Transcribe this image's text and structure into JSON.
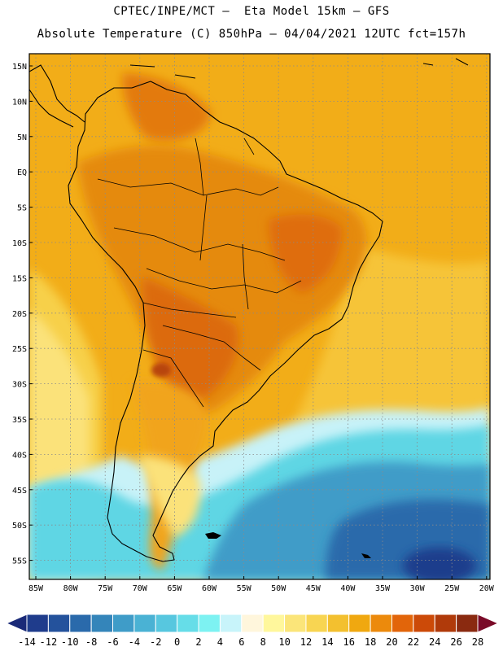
{
  "header": {
    "line1": "CPTEC/INPE/MCT –  Eta Model 15km – GFS",
    "line2": "Absolute Temperature (C) 850hPa – 04/04/2021 12UTC fct=157h"
  },
  "map": {
    "lat_labels": [
      "15N",
      "10N",
      "5N",
      "EQ",
      "5S",
      "10S",
      "15S",
      "20S",
      "25S",
      "30S",
      "35S",
      "40S",
      "45S",
      "50S",
      "55S"
    ],
    "lon_labels": [
      "85W",
      "80W",
      "75W",
      "70W",
      "65W",
      "60W",
      "55W",
      "50W",
      "45W",
      "40W",
      "35W",
      "30W",
      "25W",
      "20W"
    ]
  },
  "colorbar": {
    "ticks": [
      "-14",
      "-12",
      "-10",
      "-8",
      "-6",
      "-4",
      "-2",
      "0",
      "2",
      "4",
      "6",
      "8",
      "10",
      "12",
      "14",
      "16",
      "18",
      "20",
      "22",
      "24",
      "26",
      "28"
    ],
    "colors": [
      "#1f3c8c",
      "#24529c",
      "#2a6aab",
      "#3485ba",
      "#3f9cc8",
      "#4ab2d4",
      "#57c7df",
      "#66dde8",
      "#7df2f2",
      "#c8f4fa",
      "#fff6dc",
      "#fff79c",
      "#fbe579",
      "#f8d552",
      "#f3c02f",
      "#f0a810",
      "#ec8a0c",
      "#e2650a",
      "#cc4a08",
      "#b03a0a",
      "#8a2a10"
    ],
    "under_color": "#1a2a78",
    "over_color": "#7a0a28"
  },
  "styles": {
    "ocean_warm": "#f2b01c",
    "land_hot": "#e26a08",
    "cold_ocean": "#4fc2dc",
    "coast": "#000000",
    "grid": "#b0b0b0"
  }
}
